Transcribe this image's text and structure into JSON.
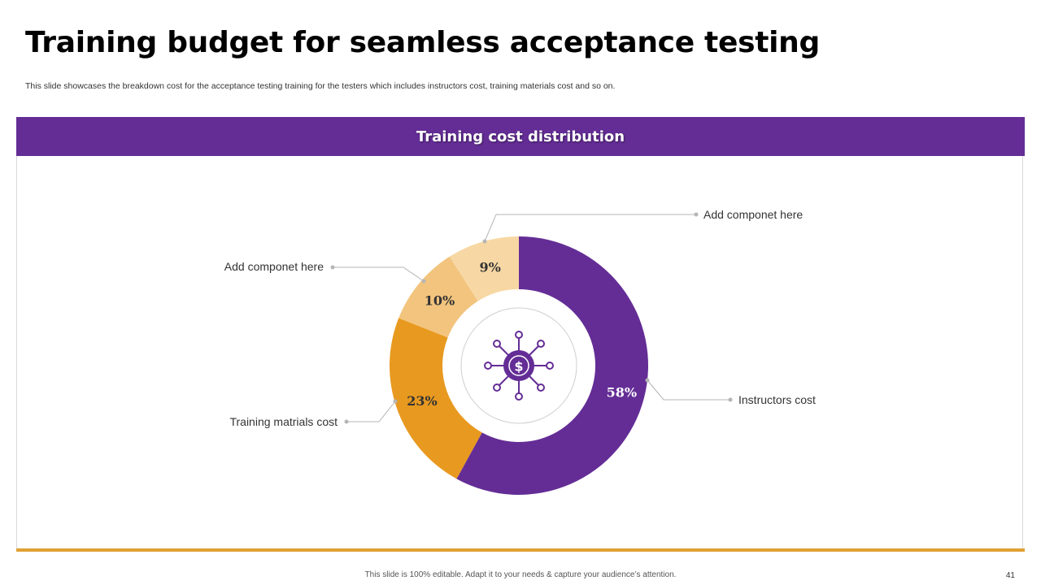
{
  "slide": {
    "title": "Training budget for seamless acceptance testing",
    "subtitle": "This slide showcases the breakdown cost for the acceptance testing training for the testers which includes instructors cost, training materials cost and so on.",
    "footer": "This slide is 100% editable. Adapt it to your needs & capture your audience’s attention.",
    "page_number": "41"
  },
  "panel": {
    "header": "Training cost distribution"
  },
  "colors": {
    "header_bg": "#642d96",
    "accent_rule": "#e0a132"
  },
  "center_icon": "dollar-network-icon",
  "chart_data": {
    "type": "pie",
    "variant": "donut",
    "title": "Training cost distribution",
    "slices": [
      {
        "label": "Instructors cost",
        "value": 58,
        "value_label": "58%",
        "color": "#642d96",
        "label_color": "#ffffff"
      },
      {
        "label": "Training matrials cost",
        "value": 23,
        "value_label": "23%",
        "color": "#e8991f",
        "label_color": "#333333"
      },
      {
        "label": "Add componet here",
        "value": 10,
        "value_label": "10%",
        "color": "#f2c47d",
        "label_color": "#333333"
      },
      {
        "label": "Add componet here",
        "value": 9,
        "value_label": "9%",
        "color": "#f7d8a4",
        "label_color": "#333333"
      }
    ]
  }
}
